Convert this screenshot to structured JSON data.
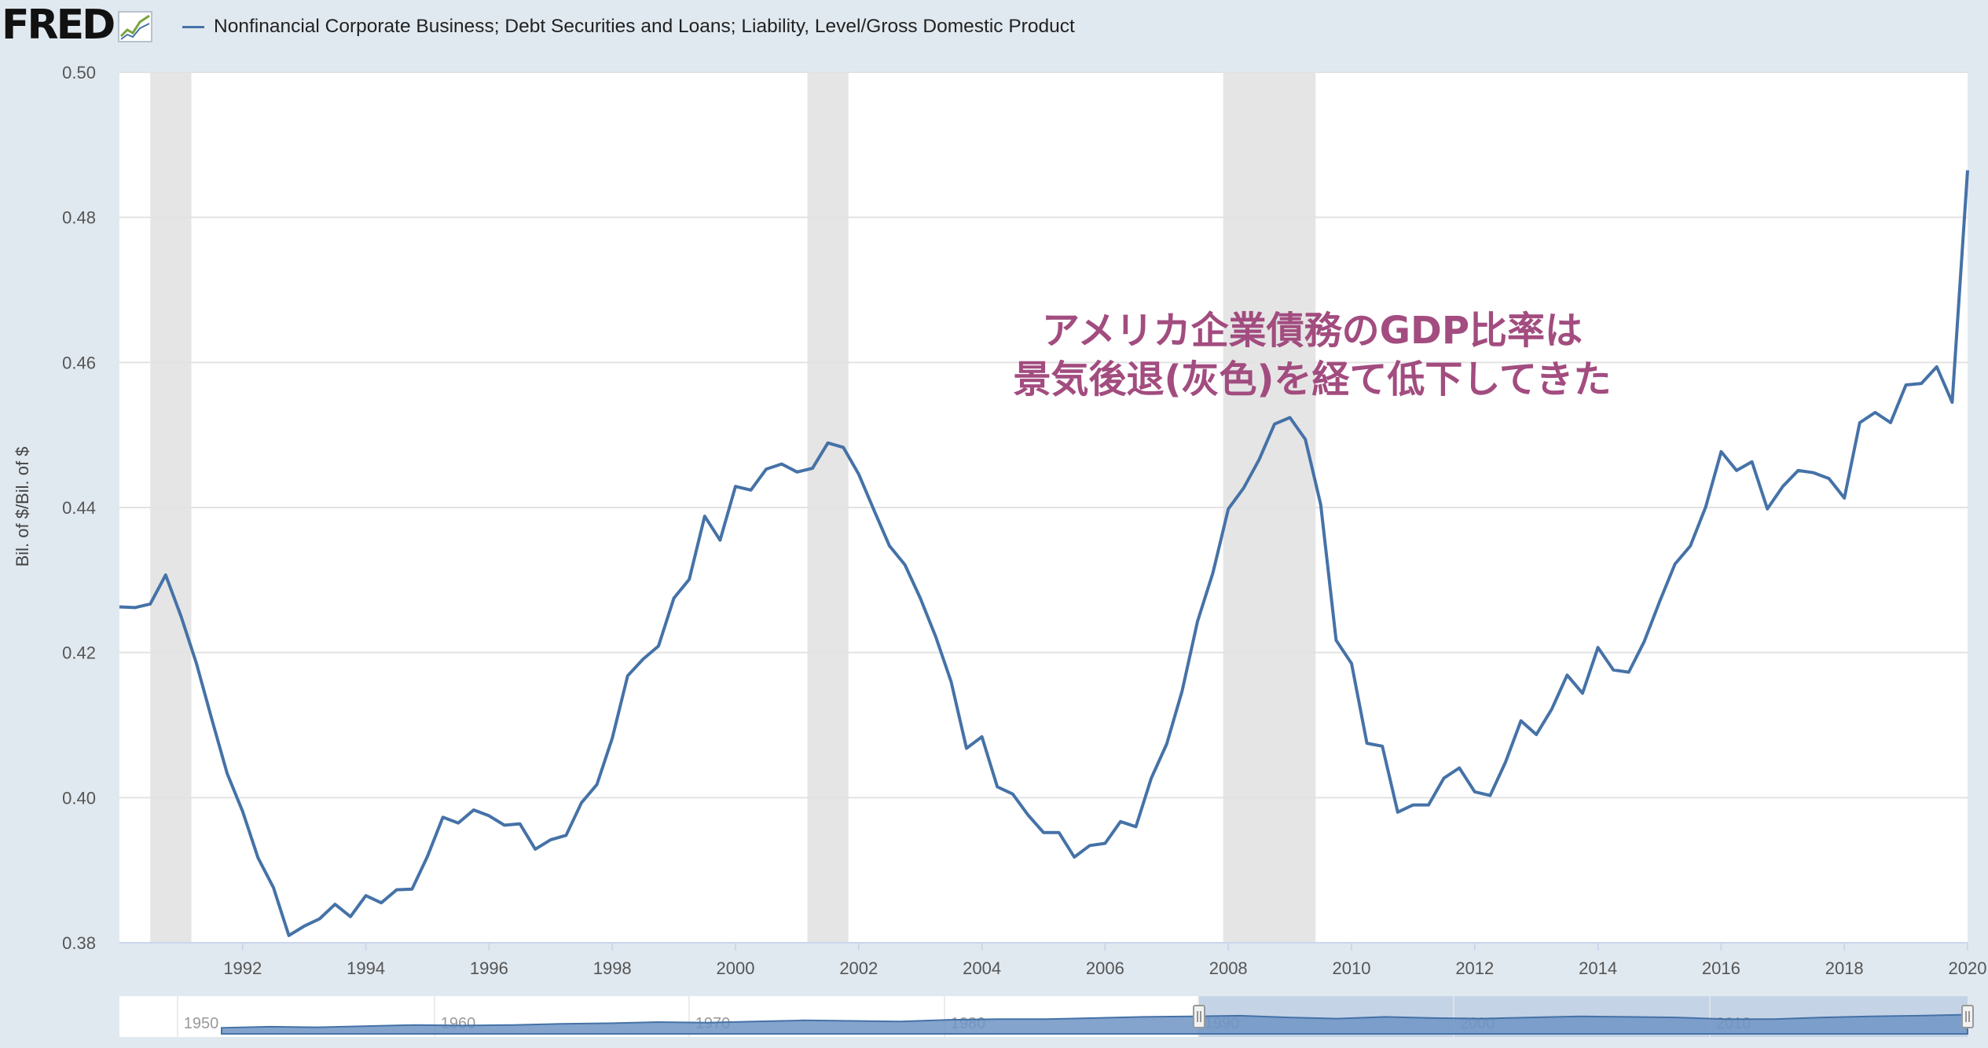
{
  "header": {
    "logo_text": "FRED"
  },
  "chart_data": {
    "type": "line",
    "title": "",
    "xlabel": "",
    "ylabel": "Bil. of $/Bil. of $",
    "xlim": [
      1990.0,
      2020.0
    ],
    "ylim": [
      0.38,
      0.5
    ],
    "yticks": [
      "0.38",
      "0.40",
      "0.42",
      "0.44",
      "0.46",
      "0.48",
      "0.50"
    ],
    "xticks": [
      "1992",
      "1994",
      "1996",
      "1998",
      "2000",
      "2002",
      "2004",
      "2006",
      "2008",
      "2010",
      "2012",
      "2014",
      "2016",
      "2018",
      "2020"
    ],
    "grid": "horizontal",
    "legend_position": "top-left",
    "recessions": [
      {
        "start": "1990-07",
        "end": "1991-03"
      },
      {
        "start": "2001-03",
        "end": "2001-11"
      },
      {
        "start": "2007-12",
        "end": "2009-06"
      }
    ],
    "annotation": {
      "line1": "アメリカ企業債務のGDP比率は",
      "line2": "景気後退(灰色)を経て低下してきた"
    },
    "navigator": {
      "labels": [
        "1950",
        "1960",
        "1970",
        "1980",
        "1990",
        "2000",
        "2010"
      ],
      "values": [
        0.25,
        0.27,
        0.26,
        0.28,
        0.3,
        0.29,
        0.3,
        0.32,
        0.33,
        0.35,
        0.34,
        0.36,
        0.38,
        0.37,
        0.36,
        0.39,
        0.4,
        0.4,
        0.42,
        0.44,
        0.45,
        0.46,
        0.43,
        0.41,
        0.44,
        0.42,
        0.41,
        0.43,
        0.45,
        0.44,
        0.43,
        0.4,
        0.4,
        0.43,
        0.45,
        0.46,
        0.48
      ]
    },
    "series": [
      {
        "name": "Nonfinancial Corporate Business; Debt Securities and Loans; Liability, Level/Gross Domestic Product",
        "color": "#4572a7",
        "x": [
          "1990-01",
          "1990-04",
          "1990-07",
          "1990-10",
          "1991-01",
          "1991-04",
          "1991-07",
          "1991-10",
          "1992-01",
          "1992-04",
          "1992-07",
          "1992-10",
          "1993-01",
          "1993-04",
          "1993-07",
          "1993-10",
          "1994-01",
          "1994-04",
          "1994-07",
          "1994-10",
          "1995-01",
          "1995-04",
          "1995-07",
          "1995-10",
          "1996-01",
          "1996-04",
          "1996-07",
          "1996-10",
          "1997-01",
          "1997-04",
          "1997-07",
          "1997-10",
          "1998-01",
          "1998-04",
          "1998-07",
          "1998-10",
          "1999-01",
          "1999-04",
          "1999-07",
          "1999-10",
          "2000-01",
          "2000-04",
          "2000-07",
          "2000-10",
          "2001-01",
          "2001-04",
          "2001-07",
          "2001-10",
          "2002-01",
          "2002-04",
          "2002-07",
          "2002-10",
          "2003-01",
          "2003-04",
          "2003-07",
          "2003-10",
          "2004-01",
          "2004-04",
          "2004-07",
          "2004-10",
          "2005-01",
          "2005-04",
          "2005-07",
          "2005-10",
          "2006-01",
          "2006-04",
          "2006-07",
          "2006-10",
          "2007-01",
          "2007-04",
          "2007-07",
          "2007-10",
          "2008-01",
          "2008-04",
          "2008-07",
          "2008-10",
          "2009-01",
          "2009-04",
          "2009-07",
          "2009-10",
          "2010-01",
          "2010-04",
          "2010-07",
          "2010-10",
          "2011-01",
          "2011-04",
          "2011-07",
          "2011-10",
          "2012-01",
          "2012-04",
          "2012-07",
          "2012-10",
          "2013-01",
          "2013-04",
          "2013-07",
          "2013-10",
          "2014-01",
          "2014-04",
          "2014-07",
          "2014-10",
          "2015-01",
          "2015-04",
          "2015-07",
          "2015-10",
          "2016-01",
          "2016-04",
          "2016-07",
          "2016-10",
          "2017-01",
          "2017-04",
          "2017-07",
          "2017-10",
          "2018-01",
          "2018-04",
          "2018-07",
          "2018-10",
          "2019-01",
          "2019-04",
          "2019-07",
          "2019-10",
          "2020-01"
        ],
        "values": [
          0.4263,
          0.4262,
          0.4267,
          0.4307,
          0.425,
          0.4185,
          0.4108,
          0.4033,
          0.3981,
          0.3917,
          0.3876,
          0.381,
          0.3823,
          0.3833,
          0.3853,
          0.3836,
          0.3865,
          0.3855,
          0.3873,
          0.3874,
          0.3919,
          0.3973,
          0.3965,
          0.3983,
          0.3975,
          0.3962,
          0.3964,
          0.3929,
          0.3942,
          0.3948,
          0.3993,
          0.4018,
          0.4082,
          0.4168,
          0.4191,
          0.4209,
          0.4275,
          0.4301,
          0.4388,
          0.4355,
          0.4429,
          0.4424,
          0.4453,
          0.446,
          0.4449,
          0.4454,
          0.4489,
          0.4483,
          0.4446,
          0.4396,
          0.4347,
          0.4321,
          0.4275,
          0.4222,
          0.416,
          0.4068,
          0.4084,
          0.4015,
          0.4005,
          0.3976,
          0.3952,
          0.3952,
          0.3918,
          0.3934,
          0.3937,
          0.3967,
          0.396,
          0.4027,
          0.4074,
          0.4147,
          0.4243,
          0.431,
          0.4398,
          0.4427,
          0.4466,
          0.4515,
          0.4524,
          0.4494,
          0.4404,
          0.4217,
          0.4185,
          0.4075,
          0.4071,
          0.398,
          0.399,
          0.399,
          0.4027,
          0.4041,
          0.4008,
          0.4003,
          0.4049,
          0.4106,
          0.4087,
          0.4122,
          0.4169,
          0.4144,
          0.4207,
          0.4176,
          0.4173,
          0.4215,
          0.427,
          0.4322,
          0.4347,
          0.4401,
          0.4477,
          0.4451,
          0.4463,
          0.4398,
          0.4429,
          0.4451,
          0.4448,
          0.444,
          0.4413,
          0.4517,
          0.4531,
          0.4517,
          0.4569,
          0.4571,
          0.4594,
          0.4545,
          0.4865
        ]
      }
    ]
  }
}
